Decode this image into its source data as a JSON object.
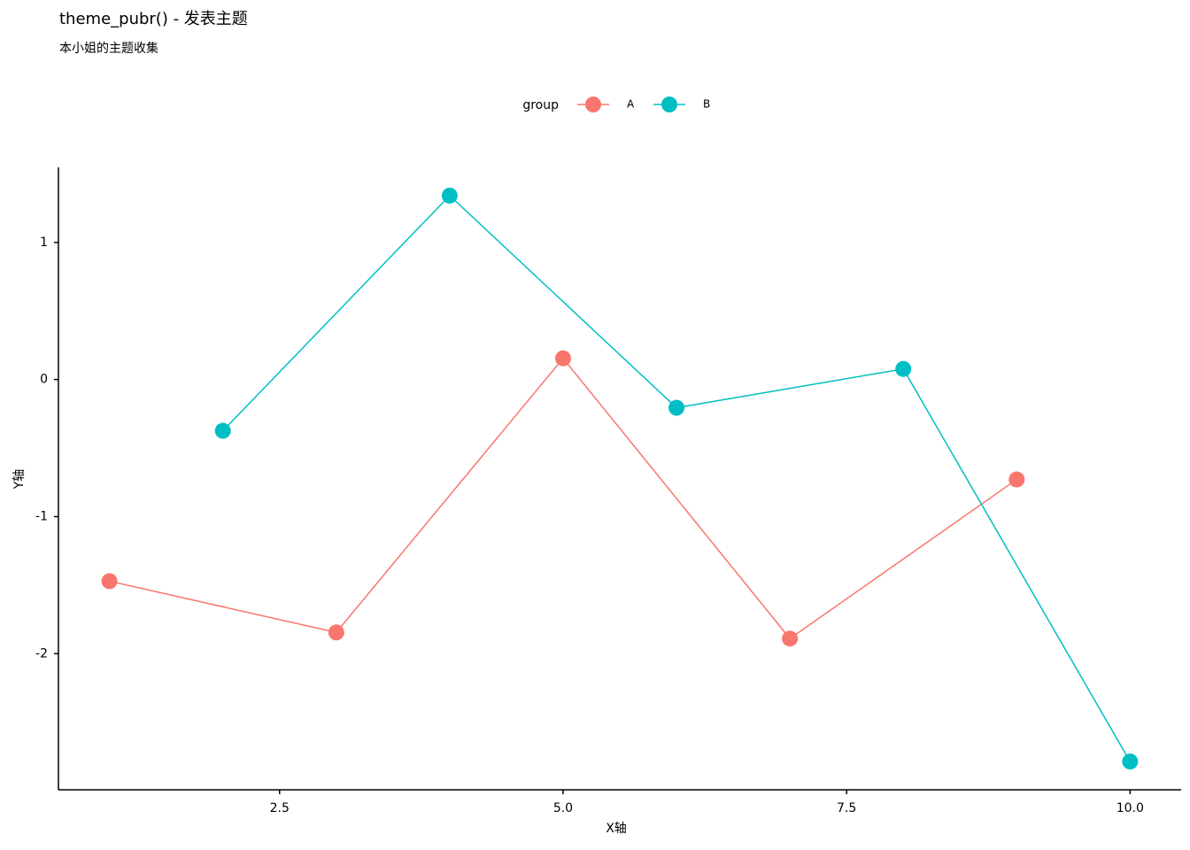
{
  "chart_data": {
    "type": "line",
    "title": "theme_pubr() - 发表主题",
    "subtitle": "本小姐的主题收集",
    "x_label": "X轴",
    "y_label": "Y轴",
    "legend_title": "group",
    "legend_position": "top",
    "grid": false,
    "xlim": [
      0.55,
      10.45
    ],
    "ylim": [
      -2.993,
      1.548
    ],
    "xticks": [
      2.5,
      {
        "value": 5,
        "label": "5.0"
      },
      7.5,
      {
        "value": 10,
        "label": "10.0"
      }
    ],
    "yticks": [
      -2,
      -1,
      0,
      1
    ],
    "series": [
      {
        "name": "A",
        "color": "#F8766D",
        "x": [
          1,
          3,
          5,
          7,
          9
        ],
        "values": [
          -1.471,
          -1.845,
          0.155,
          -1.89,
          -0.729
        ]
      },
      {
        "name": "B",
        "color": "#00BFC4",
        "x": [
          2,
          4,
          6,
          8,
          10
        ],
        "values": [
          -0.374,
          1.342,
          -0.206,
          0.077,
          -2.787
        ]
      }
    ]
  }
}
